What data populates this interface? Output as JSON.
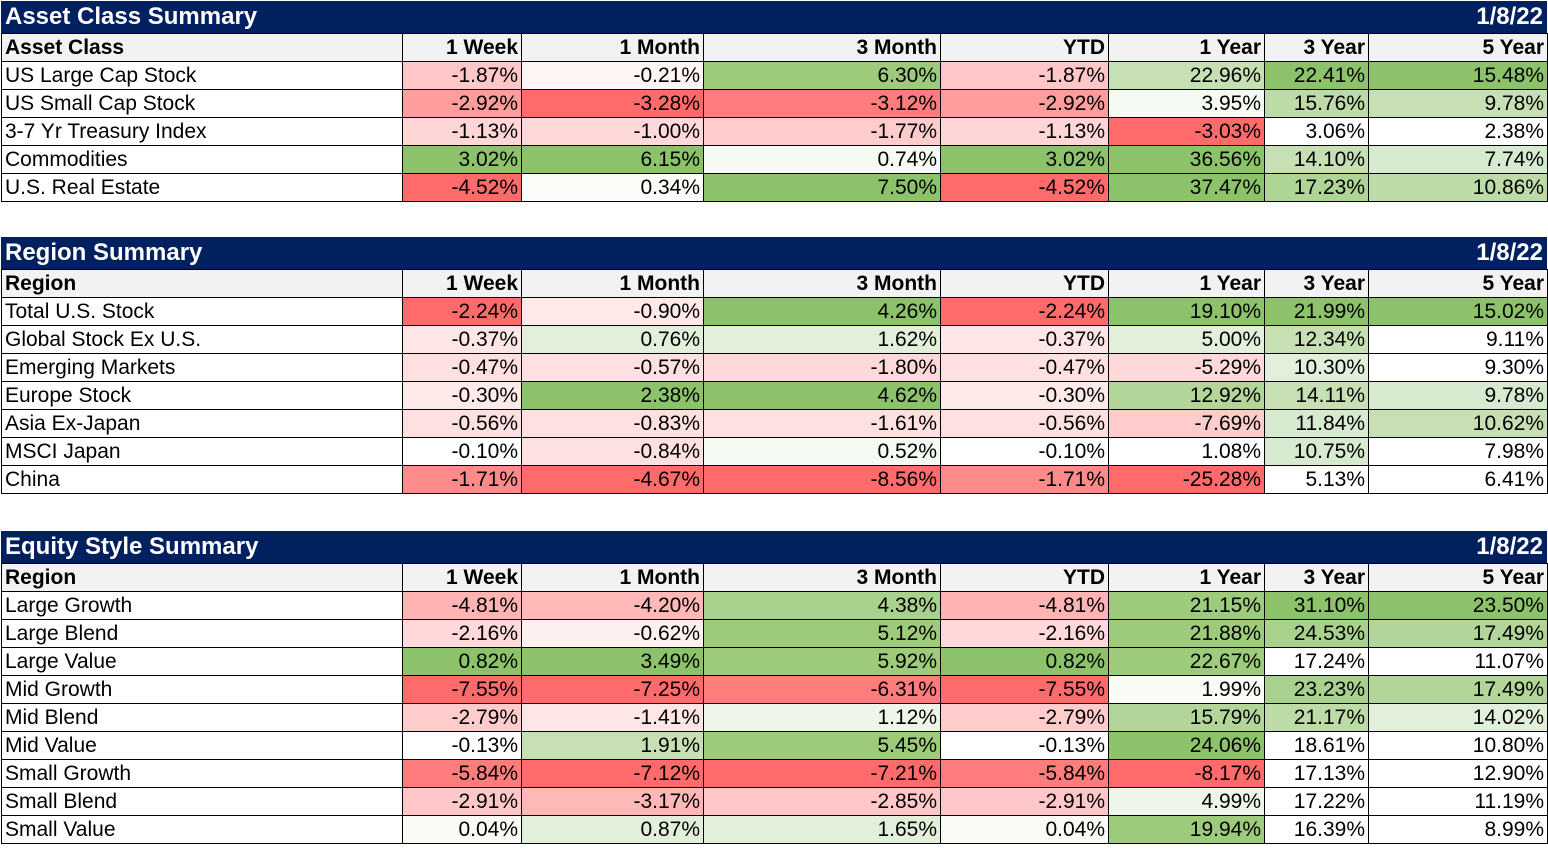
{
  "sections": [
    {
      "title": "Asset Class Summary",
      "date": "1/8/22",
      "headers": [
        "Asset Class",
        "1 Week",
        "1 Month",
        "3 Month",
        "YTD",
        "1 Year",
        "3 Year",
        "5 Year"
      ],
      "rows": [
        {
          "name": "US Large Cap Stock",
          "values": [
            "-1.87%",
            "-0.21%",
            "6.30%",
            "-1.87%",
            "22.96%",
            "22.41%",
            "15.48%"
          ],
          "colors": [
            "#ffc7c7",
            "#fff5f5",
            "#9dcb7b",
            "#ffc7c7",
            "#c6e0b4",
            "#8bc26a",
            "#8bc26a"
          ]
        },
        {
          "name": "US Small Cap Stock",
          "values": [
            "-2.92%",
            "-3.28%",
            "-3.12%",
            "-2.92%",
            "3.95%",
            "15.76%",
            "9.78%"
          ],
          "colors": [
            "#ff9c9c",
            "#ff6a6a",
            "#ff7c7c",
            "#ff9c9c",
            "#f5faf2",
            "#bcdba6",
            "#c6e0b4"
          ]
        },
        {
          "name": "3-7 Yr Treasury Index",
          "values": [
            "-1.13%",
            "-1.00%",
            "-1.77%",
            "-1.13%",
            "-3.03%",
            "3.06%",
            "2.38%"
          ],
          "colors": [
            "#ffd6d6",
            "#ffd9d9",
            "#ffcccc",
            "#ffd6d6",
            "#ff6a6a",
            "#ffffff",
            "#ffffff"
          ]
        },
        {
          "name": "Commodities",
          "values": [
            "3.02%",
            "6.15%",
            "0.74%",
            "3.02%",
            "36.56%",
            "14.10%",
            "7.74%"
          ],
          "colors": [
            "#8bc26a",
            "#8bc26a",
            "#f5faf2",
            "#8bc26a",
            "#8bc26a",
            "#c6e0b4",
            "#d6ead0"
          ]
        },
        {
          "name": "U.S. Real Estate",
          "values": [
            "-4.52%",
            "0.34%",
            "7.50%",
            "-4.52%",
            "37.47%",
            "17.23%",
            "10.86%"
          ],
          "colors": [
            "#ff6a6a",
            "#fbfdf9",
            "#8bc26a",
            "#ff6a6a",
            "#8bc26a",
            "#afd596",
            "#bcdba6"
          ]
        }
      ]
    },
    {
      "title": "Region Summary",
      "date": "1/8/22",
      "headers": [
        "Region",
        "1 Week",
        "1 Month",
        "3 Month",
        "YTD",
        "1 Year",
        "3 Year",
        "5 Year"
      ],
      "rows": [
        {
          "name": "Total U.S. Stock",
          "values": [
            "-2.24%",
            "-0.90%",
            "4.26%",
            "-2.24%",
            "19.10%",
            "21.99%",
            "15.02%"
          ],
          "colors": [
            "#ff6a6a",
            "#ffe8e8",
            "#8bc26a",
            "#ff6a6a",
            "#8bc26a",
            "#8bc26a",
            "#8bc26a"
          ]
        },
        {
          "name": "Global Stock Ex U.S.",
          "values": [
            "-0.37%",
            "0.76%",
            "1.62%",
            "-0.37%",
            "5.00%",
            "12.34%",
            "9.11%"
          ],
          "colors": [
            "#ffe6e6",
            "#e2efda",
            "#e2efda",
            "#ffe6e6",
            "#e2efda",
            "#c6e0b4",
            "#ffffff"
          ]
        },
        {
          "name": "Emerging Markets",
          "values": [
            "-0.47%",
            "-0.57%",
            "-1.80%",
            "-0.47%",
            "-5.29%",
            "10.30%",
            "9.30%"
          ],
          "colors": [
            "#ffe0e0",
            "#ffe0e0",
            "#ffd9d9",
            "#ffe0e0",
            "#ffd9d9",
            "#e2efda",
            "#ffffff"
          ]
        },
        {
          "name": "Europe Stock",
          "values": [
            "-0.30%",
            "2.38%",
            "4.62%",
            "-0.30%",
            "12.92%",
            "14.11%",
            "9.78%"
          ],
          "colors": [
            "#ffeaea",
            "#8bc26a",
            "#8bc26a",
            "#ffeaea",
            "#b3d59a",
            "#c6e0b4",
            "#d6ead0"
          ]
        },
        {
          "name": "Asia Ex-Japan",
          "values": [
            "-0.56%",
            "-0.83%",
            "-1.61%",
            "-0.56%",
            "-7.69%",
            "11.84%",
            "10.62%"
          ],
          "colors": [
            "#ffe0e0",
            "#ffe0e0",
            "#ffe0e0",
            "#ffe0e0",
            "#ffcccc",
            "#d6ead0",
            "#c6e0b4"
          ]
        },
        {
          "name": "MSCI Japan",
          "values": [
            "-0.10%",
            "-0.84%",
            "0.52%",
            "-0.10%",
            "1.08%",
            "10.75%",
            "7.98%"
          ],
          "colors": [
            "#ffffff",
            "#ffe0e0",
            "#f5faf2",
            "#ffffff",
            "#ffffff",
            "#d6ead0",
            "#ffffff"
          ]
        },
        {
          "name": "China",
          "values": [
            "-1.71%",
            "-4.67%",
            "-8.56%",
            "-1.71%",
            "-25.28%",
            "5.13%",
            "6.41%"
          ],
          "colors": [
            "#ff8a8a",
            "#ff6a6a",
            "#ff6a6a",
            "#ff8a8a",
            "#ff6a6a",
            "#ffffff",
            "#ffffff"
          ]
        }
      ]
    },
    {
      "title": "Equity Style Summary",
      "date": "1/8/22",
      "headers": [
        "Region",
        "1 Week",
        "1 Month",
        "3 Month",
        "YTD",
        "1 Year",
        "3 Year",
        "5 Year"
      ],
      "rows": [
        {
          "name": "Large Growth",
          "values": [
            "-4.81%",
            "-4.20%",
            "4.38%",
            "-4.81%",
            "21.15%",
            "31.10%",
            "23.50%"
          ],
          "colors": [
            "#ffb3b3",
            "#ffb8b8",
            "#a9d18e",
            "#ffb3b3",
            "#9dcb7b",
            "#8bc26a",
            "#8bc26a"
          ]
        },
        {
          "name": "Large Blend",
          "values": [
            "-2.16%",
            "-0.62%",
            "5.12%",
            "-2.16%",
            "21.88%",
            "24.53%",
            "17.49%"
          ],
          "colors": [
            "#ffd9d9",
            "#fff0f0",
            "#9dcb7b",
            "#ffd9d9",
            "#9dcb7b",
            "#a9d18e",
            "#b3d59a"
          ]
        },
        {
          "name": "Large Value",
          "values": [
            "0.82%",
            "3.49%",
            "5.92%",
            "0.82%",
            "22.67%",
            "17.24%",
            "11.07%"
          ],
          "colors": [
            "#8bc26a",
            "#8bc26a",
            "#9dcb7b",
            "#8bc26a",
            "#9dcb7b",
            "#ffffff",
            "#ffffff"
          ]
        },
        {
          "name": "Mid Growth",
          "values": [
            "-7.55%",
            "-7.25%",
            "-6.31%",
            "-7.55%",
            "1.99%",
            "23.23%",
            "17.49%"
          ],
          "colors": [
            "#ff6a6a",
            "#ff6a6a",
            "#ff7c7c",
            "#ff6a6a",
            "#f8fcf5",
            "#a9d18e",
            "#b3d59a"
          ]
        },
        {
          "name": "Mid Blend",
          "values": [
            "-2.79%",
            "-1.41%",
            "1.12%",
            "-2.79%",
            "15.79%",
            "21.17%",
            "14.02%"
          ],
          "colors": [
            "#ffcccc",
            "#ffe6e6",
            "#eef6e9",
            "#ffcccc",
            "#b3d59a",
            "#bcdba6",
            "#e2efda"
          ]
        },
        {
          "name": "Mid Value",
          "values": [
            "-0.13%",
            "1.91%",
            "5.45%",
            "-0.13%",
            "24.06%",
            "18.61%",
            "10.80%"
          ],
          "colors": [
            "#ffffff",
            "#c6e0b4",
            "#9dcb7b",
            "#ffffff",
            "#8bc26a",
            "#ffffff",
            "#ffffff"
          ]
        },
        {
          "name": "Small Growth",
          "values": [
            "-5.84%",
            "-7.12%",
            "-7.21%",
            "-5.84%",
            "-8.17%",
            "17.13%",
            "12.90%"
          ],
          "colors": [
            "#ff7c7c",
            "#ff6a6a",
            "#ff6a6a",
            "#ff7c7c",
            "#ff6a6a",
            "#ffffff",
            "#ffffff"
          ]
        },
        {
          "name": "Small Blend",
          "values": [
            "-2.91%",
            "-3.17%",
            "-2.85%",
            "-2.91%",
            "4.99%",
            "17.22%",
            "11.19%"
          ],
          "colors": [
            "#ffc7c7",
            "#ffb8b8",
            "#ffc7c7",
            "#ffc7c7",
            "#eef6e9",
            "#ffffff",
            "#ffffff"
          ]
        },
        {
          "name": "Small Value",
          "values": [
            "0.04%",
            "0.87%",
            "1.65%",
            "0.04%",
            "19.94%",
            "16.39%",
            "8.99%"
          ],
          "colors": [
            "#f8fcf5",
            "#e2efda",
            "#e2efda",
            "#f8fcf5",
            "#9dcb7b",
            "#ffffff",
            "#ffffff"
          ]
        }
      ]
    }
  ]
}
